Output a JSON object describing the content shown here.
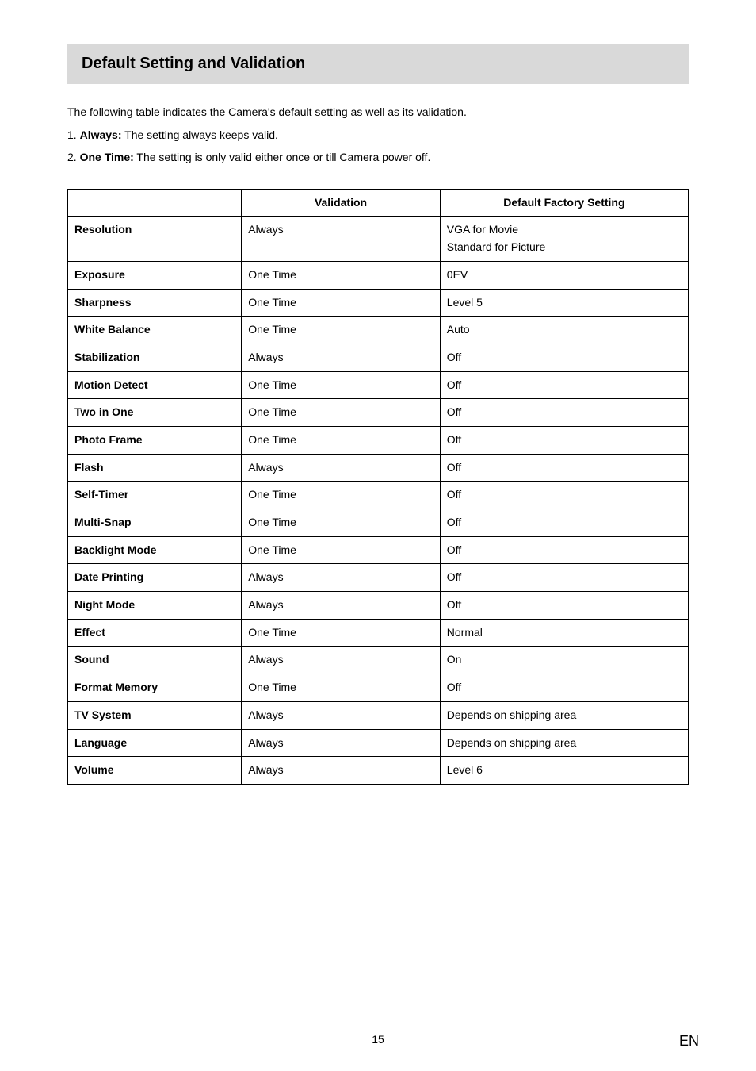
{
  "heading": "Default Setting and Validation",
  "intro": {
    "line1": "The following table indicates the Camera's default setting as well as its validation.",
    "line2_prefix": "1. ",
    "line2_bold": "Always:",
    "line2_rest": " The setting always keeps valid.",
    "line3_prefix": "2. ",
    "line3_bold": "One Time:",
    "line3_rest": " The setting is only valid either once or till Camera power off."
  },
  "table": {
    "headers": {
      "c1": "Validation",
      "c2": "Default Factory Setting"
    },
    "rows": [
      {
        "name": "Resolution",
        "validation": "Always",
        "default_lines": [
          "VGA for Movie",
          "Standard for Picture"
        ]
      },
      {
        "name": "Exposure",
        "validation": "One Time",
        "default": "0EV"
      },
      {
        "name": "Sharpness",
        "validation": "One Time",
        "default": "Level 5"
      },
      {
        "name": "White Balance",
        "validation": "One Time",
        "default": "Auto"
      },
      {
        "name": "Stabilization",
        "validation": "Always",
        "default": "Off"
      },
      {
        "name": "Motion Detect",
        "validation": "One Time",
        "default": "Off"
      },
      {
        "name": "Two in One",
        "validation": "One Time",
        "default": "Off"
      },
      {
        "name": "Photo Frame",
        "validation": "One Time",
        "default": "Off"
      },
      {
        "name": "Flash",
        "validation": "Always",
        "default": "Off"
      },
      {
        "name": "Self-Timer",
        "validation": "One Time",
        "default": "Off"
      },
      {
        "name": "Multi-Snap",
        "validation": "One Time",
        "default": "Off"
      },
      {
        "name": "Backlight Mode",
        "validation": "One Time",
        "default": "Off"
      },
      {
        "name": "Date Printing",
        "validation": "Always",
        "default": "Off"
      },
      {
        "name": "Night Mode",
        "validation": "Always",
        "default": "Off"
      },
      {
        "name": "Effect",
        "validation": "One Time",
        "default": "Normal"
      },
      {
        "name": "Sound",
        "validation": "Always",
        "default": "On"
      },
      {
        "name": "Format Memory",
        "validation": "One Time",
        "default": "Off"
      },
      {
        "name": "TV System",
        "validation": "Always",
        "default": "Depends on shipping area"
      },
      {
        "name": "Language",
        "validation": "Always",
        "default": "Depends on shipping area"
      },
      {
        "name": "Volume",
        "validation": "Always",
        "default": "Level 6"
      }
    ]
  },
  "footer": {
    "page": "15",
    "lang": "EN"
  }
}
